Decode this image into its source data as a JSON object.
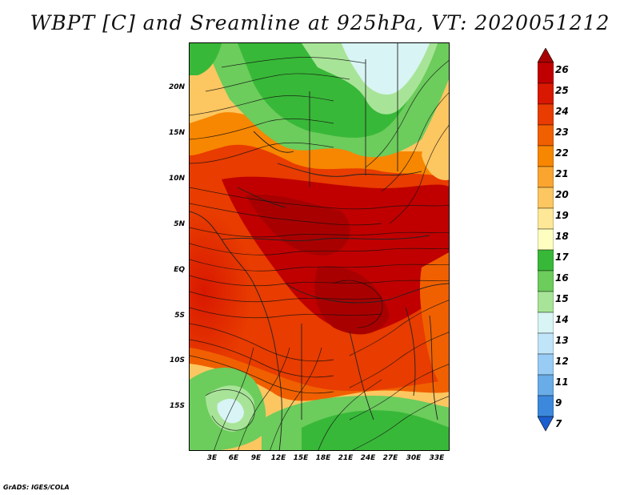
{
  "title": "WBPT [C] and Sreamline at 925hPa, VT: 2020051212",
  "credit": "GrADS: IGES/COLA",
  "map": {
    "lat_ticks": [
      "20N",
      "15N",
      "10N",
      "5N",
      "EQ",
      "5S",
      "10S",
      "15S"
    ],
    "lon_ticks": [
      "3E",
      "6E",
      "9E",
      "12E",
      "15E",
      "18E",
      "21E",
      "24E",
      "27E",
      "30E",
      "33E"
    ],
    "lon_range": [
      0,
      35
    ],
    "lat_range": [
      -20,
      24
    ]
  },
  "colorbar": {
    "labels": [
      "26",
      "25",
      "24",
      "23",
      "22",
      "21",
      "20",
      "19",
      "18",
      "17",
      "16",
      "15",
      "14",
      "13",
      "12",
      "11",
      "9",
      "7"
    ],
    "colors": [
      "#a80000",
      "#c00000",
      "#d81800",
      "#e83c00",
      "#f06000",
      "#f78600",
      "#faa530",
      "#fcc660",
      "#fee898",
      "#fefec0",
      "#38b838",
      "#6ccc5c",
      "#a8e498",
      "#d8f4f4",
      "#c0e4f8",
      "#98ccf4",
      "#68ace8",
      "#3c88dc",
      "#1c60d0"
    ]
  }
}
